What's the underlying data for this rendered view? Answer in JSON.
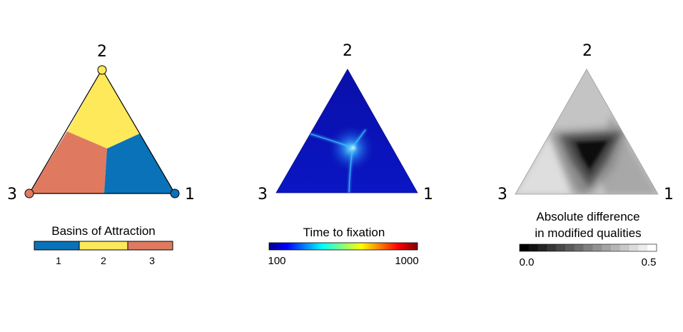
{
  "panels": {
    "basins": {
      "vertex_labels": {
        "top": "2",
        "left": "3",
        "right": "1"
      },
      "legend_title": "Basins of Attraction",
      "legend_items": [
        {
          "label": "1",
          "color": "#0a72b8"
        },
        {
          "label": "2",
          "color": "#fde95a"
        },
        {
          "label": "3",
          "color": "#df7a60"
        }
      ]
    },
    "fixation": {
      "vertex_labels": {
        "top": "2",
        "left": "3",
        "right": "1"
      },
      "legend_title": "Time to fixation",
      "colorbar": {
        "min_label": "100",
        "max_label": "1000",
        "scale": "jet"
      },
      "fill_color": "#0a12b8",
      "highlight_color": "#3ec8ff"
    },
    "difference": {
      "vertex_labels": {
        "top": "2",
        "left": "3",
        "right": "1"
      },
      "legend_title_line1": "Absolute difference",
      "legend_title_line2": "in modified qualities",
      "colorbar": {
        "min_label": "0.0",
        "max_label": "0.5",
        "scale": "grayscale",
        "steps": 15
      }
    }
  }
}
